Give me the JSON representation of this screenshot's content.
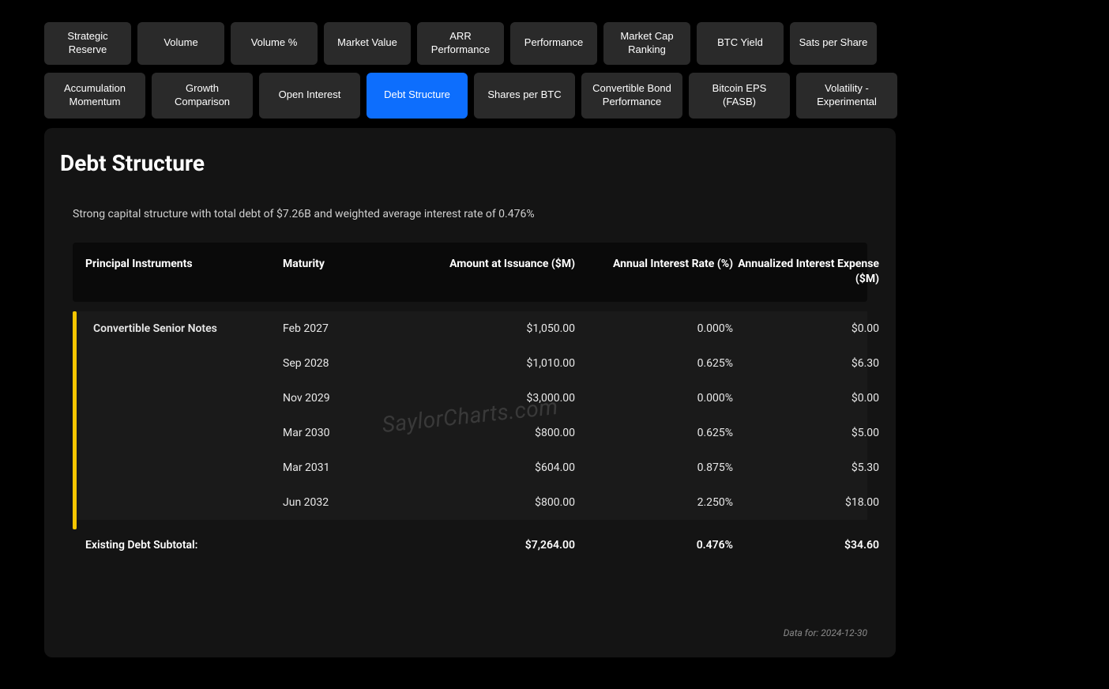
{
  "tabs_row1": [
    {
      "label": "Strategic Reserve",
      "active": false
    },
    {
      "label": "Volume",
      "active": false
    },
    {
      "label": "Volume %",
      "active": false
    },
    {
      "label": "Market Value",
      "active": false
    },
    {
      "label": "ARR Performance",
      "active": false
    },
    {
      "label": "Performance",
      "active": false
    },
    {
      "label": "Market Cap Ranking",
      "active": false
    },
    {
      "label": "BTC Yield",
      "active": false
    },
    {
      "label": "Sats per Share",
      "active": false
    }
  ],
  "tabs_row2": [
    {
      "label": "Accumulation Momentum",
      "active": false
    },
    {
      "label": "Growth Comparison",
      "active": false
    },
    {
      "label": "Open Interest",
      "active": false
    },
    {
      "label": "Debt Structure",
      "active": true
    },
    {
      "label": "Shares per BTC",
      "active": false
    },
    {
      "label": "Convertible Bond Performance",
      "active": false
    },
    {
      "label": "Bitcoin EPS (FASB)",
      "active": false
    },
    {
      "label": "Volatility - Experimental",
      "active": false
    }
  ],
  "panel": {
    "title": "Debt Structure",
    "subtitle": "Strong capital structure with total debt of $7.26B and weighted average interest rate of 0.476%",
    "watermark": "SaylorCharts.com",
    "data_for": "Data for: 2024-12-30"
  },
  "table": {
    "columns": [
      {
        "label": "Principal Instruments",
        "align": "left"
      },
      {
        "label": "Maturity",
        "align": "left"
      },
      {
        "label": "Amount at Issuance ($M)",
        "align": "right"
      },
      {
        "label": "Annual Interest Rate (%)",
        "align": "right"
      },
      {
        "label": "Annualized Interest Expense ($M)",
        "align": "right"
      }
    ],
    "instrument_label": "Convertible Senior Notes",
    "accent_color": "#f7c600",
    "rows": [
      {
        "maturity": "Feb 2027",
        "amount": "$1,050.00",
        "rate": "0.000%",
        "expense": "$0.00"
      },
      {
        "maturity": "Sep 2028",
        "amount": "$1,010.00",
        "rate": "0.625%",
        "expense": "$6.30"
      },
      {
        "maturity": "Nov 2029",
        "amount": "$3,000.00",
        "rate": "0.000%",
        "expense": "$0.00"
      },
      {
        "maturity": "Mar 2030",
        "amount": "$800.00",
        "rate": "0.625%",
        "expense": "$5.00"
      },
      {
        "maturity": "Mar 2031",
        "amount": "$604.00",
        "rate": "0.875%",
        "expense": "$5.30"
      },
      {
        "maturity": "Jun 2032",
        "amount": "$800.00",
        "rate": "2.250%",
        "expense": "$18.00"
      }
    ],
    "subtotal": {
      "label": "Existing Debt Subtotal:",
      "amount": "$7,264.00",
      "rate": "0.476%",
      "expense": "$34.60"
    }
  }
}
